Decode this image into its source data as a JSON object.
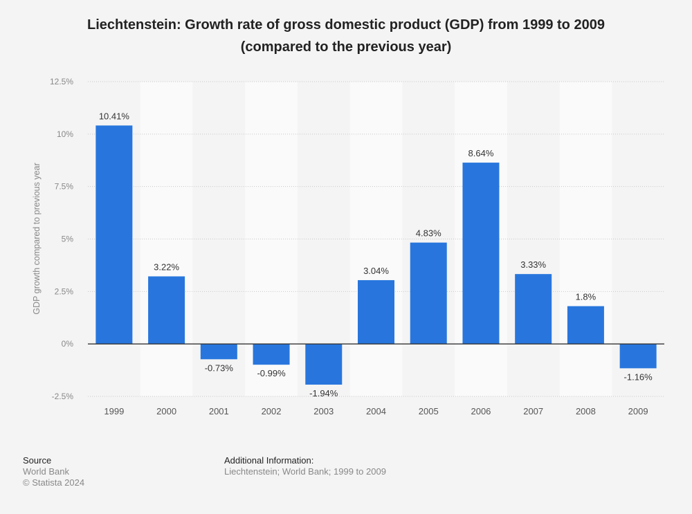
{
  "title_line1": "Liechtenstein: Growth rate of gross domestic product (GDP) from 1999 to 2009",
  "title_line2": "(compared to the previous year)",
  "footer": {
    "source_heading": "Source",
    "source_lines": [
      "World Bank",
      "© Statista 2024"
    ],
    "additional_heading": "Additional Information:",
    "additional_text": "Liechtenstein; World Bank; 1999 to 2009"
  },
  "colors": {
    "bar": "#2876dd",
    "band_light": "#fafafa",
    "background": "#f4f4f4"
  },
  "chart_data": {
    "type": "bar",
    "title": "Liechtenstein: Growth rate of gross domestic product (GDP) from 1999 to 2009 (compared to the previous year)",
    "xlabel": "",
    "ylabel": "GDP growth compared to previous year",
    "categories": [
      "1999",
      "2000",
      "2001",
      "2002",
      "2003",
      "2004",
      "2005",
      "2006",
      "2007",
      "2008",
      "2009"
    ],
    "values": [
      10.41,
      3.22,
      -0.73,
      -0.99,
      -1.94,
      3.04,
      4.83,
      8.64,
      3.33,
      1.8,
      -1.16
    ],
    "value_labels": [
      "10.41%",
      "3.22%",
      "-0.73%",
      "-0.99%",
      "-1.94%",
      "3.04%",
      "4.83%",
      "8.64%",
      "3.33%",
      "1.8%",
      "-1.16%"
    ],
    "ylim": [
      -2.5,
      12.5
    ],
    "yticks": [
      -2.5,
      0,
      2.5,
      5,
      7.5,
      10,
      12.5
    ],
    "ytick_labels": [
      "-2.5%",
      "0%",
      "2.5%",
      "5%",
      "7.5%",
      "10%",
      "12.5%"
    ],
    "grid": true,
    "legend": "none"
  }
}
